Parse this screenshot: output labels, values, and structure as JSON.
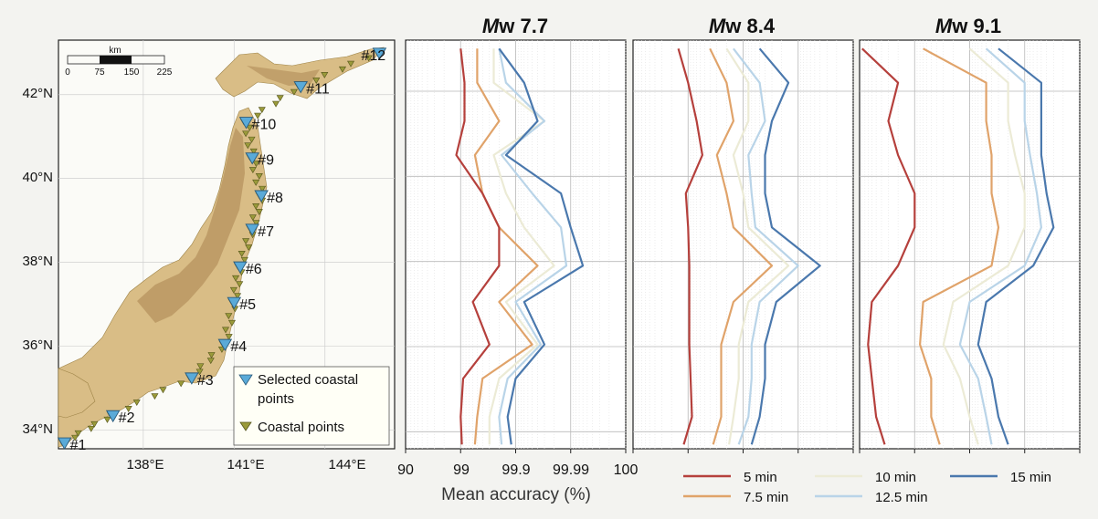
{
  "map": {
    "lat_ticks": [
      "42°N",
      "40°N",
      "38°N",
      "36°N",
      "34°N"
    ],
    "lon_ticks": [
      "138°E",
      "141°E",
      "144°E"
    ],
    "scalebar": {
      "unit": "km",
      "ticks": [
        "0",
        "75",
        "150",
        "225"
      ]
    },
    "points": [
      {
        "label": "#1",
        "lon": 135.4,
        "lat": 33.7
      },
      {
        "label": "#2",
        "lon": 137.0,
        "lat": 34.35
      },
      {
        "label": "#3",
        "lon": 139.6,
        "lat": 35.25
      },
      {
        "label": "#4",
        "lon": 140.7,
        "lat": 36.05
      },
      {
        "label": "#5",
        "lon": 141.0,
        "lat": 37.05
      },
      {
        "label": "#6",
        "lon": 141.2,
        "lat": 37.9
      },
      {
        "label": "#7",
        "lon": 141.6,
        "lat": 38.8
      },
      {
        "label": "#8",
        "lon": 141.9,
        "lat": 39.6
      },
      {
        "label": "#9",
        "lon": 141.6,
        "lat": 40.5
      },
      {
        "label": "#10",
        "lon": 141.4,
        "lat": 41.35
      },
      {
        "label": "#11",
        "lon": 143.2,
        "lat": 42.2
      },
      {
        "label": "#12",
        "lon": 145.8,
        "lat": 43.0
      }
    ],
    "legend": {
      "selected_line1": "Selected coastal",
      "selected_line2": "points",
      "coastal": "Coastal points",
      "selected_color": "#5aaad8",
      "coastal_color": "#9a9a3a"
    }
  },
  "chart_data": [
    {
      "type": "line",
      "title_italic": "M",
      "title_rest": "w 7.7",
      "y": [
        43.0,
        42.2,
        41.3,
        40.5,
        39.6,
        38.8,
        37.9,
        37.05,
        36.05,
        35.25,
        34.35,
        33.7
      ],
      "series": [
        {
          "name": "5 min",
          "values": [
            99.0,
            99.15,
            99.15,
            98.8,
            99.6,
            99.8,
            99.8,
            99.4,
            99.7,
            99.1,
            99.0,
            99.05
          ]
        },
        {
          "name": "7.5 min",
          "values": [
            99.5,
            99.5,
            99.8,
            99.45,
            99.6,
            99.8,
            99.96,
            99.8,
            99.95,
            99.6,
            99.5,
            99.45
          ]
        },
        {
          "name": "10 min",
          "values": [
            99.75,
            99.75,
            99.97,
            99.75,
            99.85,
            99.93,
            99.98,
            99.85,
            99.96,
            99.8,
            99.7,
            99.7
          ]
        },
        {
          "name": "12.5 min",
          "values": [
            99.8,
            99.85,
            99.97,
            99.82,
            99.95,
            99.985,
            99.988,
            99.9,
            99.965,
            99.86,
            99.8,
            99.82
          ]
        },
        {
          "name": "15 min",
          "values": [
            99.8,
            99.93,
            99.96,
            99.85,
            99.985,
            99.99,
            99.994,
            99.93,
            99.97,
            99.9,
            99.86,
            99.88
          ]
        }
      ]
    },
    {
      "type": "line",
      "title_italic": "M",
      "title_rest": "w 8.4",
      "y": [
        43.0,
        42.2,
        41.3,
        40.5,
        39.6,
        38.8,
        37.9,
        37.05,
        36.05,
        35.25,
        34.35,
        33.7
      ],
      "series": [
        {
          "name": "5 min",
          "values": [
            98.5,
            99.0,
            99.3,
            99.45,
            98.9,
            99.0,
            99.05,
            99.05,
            99.05,
            99.1,
            99.15,
            98.8
          ]
        },
        {
          "name": "7.5 min",
          "values": [
            99.6,
            99.8,
            99.85,
            99.7,
            99.8,
            99.85,
            99.97,
            99.85,
            99.75,
            99.75,
            99.75,
            99.65
          ]
        },
        {
          "name": "10 min",
          "values": [
            99.8,
            99.92,
            99.92,
            99.85,
            99.9,
            99.92,
            99.985,
            99.92,
            99.88,
            99.88,
            99.85,
            99.82
          ]
        },
        {
          "name": "12.5 min",
          "values": [
            99.85,
            99.95,
            99.96,
            99.92,
            99.93,
            99.94,
            99.99,
            99.95,
            99.93,
            99.93,
            99.92,
            99.88
          ]
        },
        {
          "name": "15 min",
          "values": [
            99.95,
            99.985,
            99.97,
            99.96,
            99.96,
            99.97,
            99.996,
            99.975,
            99.96,
            99.96,
            99.95,
            99.93
          ]
        }
      ]
    },
    {
      "type": "line",
      "title_italic": "M",
      "title_rest": "w 9.1",
      "y": [
        43.0,
        42.2,
        41.3,
        40.5,
        39.6,
        38.8,
        37.9,
        37.05,
        36.05,
        35.25,
        34.35,
        33.7
      ],
      "series": [
        {
          "name": "5 min",
          "values": [
            91.0,
            98.0,
            97.0,
            98.0,
            99.0,
            99.0,
            98.0,
            94.0,
            93.0,
            94.0,
            95.0,
            96.5
          ]
        },
        {
          "name": "7.5 min",
          "values": [
            99.3,
            99.95,
            99.95,
            99.96,
            99.96,
            99.97,
            99.96,
            99.3,
            99.2,
            99.5,
            99.5,
            99.65
          ]
        },
        {
          "name": "10 min",
          "values": [
            99.9,
            99.98,
            99.98,
            99.985,
            99.99,
            99.99,
            99.98,
            99.8,
            99.7,
            99.85,
            99.9,
            99.93
          ]
        },
        {
          "name": "12.5 min",
          "values": [
            99.95,
            99.99,
            99.99,
            99.992,
            99.994,
            99.995,
            99.99,
            99.9,
            99.85,
            99.93,
            99.95,
            99.96
          ]
        },
        {
          "name": "15 min",
          "values": [
            99.97,
            99.995,
            99.995,
            99.995,
            99.996,
            99.997,
            99.993,
            99.95,
            99.93,
            99.96,
            99.97,
            99.98
          ]
        }
      ]
    }
  ],
  "axes": {
    "x_ticks": [
      "90",
      "99",
      "99.9",
      "99.99",
      "100"
    ],
    "xlabel": "Mean accuracy (%)",
    "ylim": [
      33.6,
      43.2
    ]
  },
  "legend": {
    "items": [
      {
        "label": "5 min",
        "color": "#b5403c"
      },
      {
        "label": "7.5 min",
        "color": "#e0a36a"
      },
      {
        "label": "10 min",
        "color": "#ecebd6"
      },
      {
        "label": "12.5 min",
        "color": "#b9d4e8"
      },
      {
        "label": "15 min",
        "color": "#4a78ad"
      }
    ]
  }
}
